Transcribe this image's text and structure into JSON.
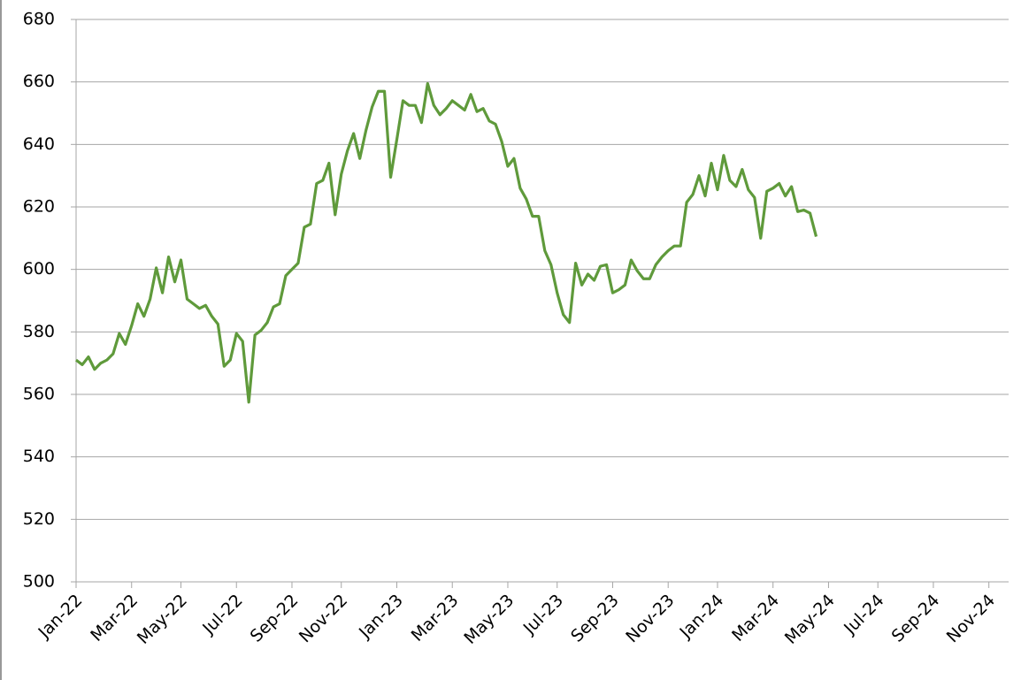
{
  "chart_data": {
    "type": "line",
    "categories": [
      "Jan-22",
      null,
      null,
      null,
      null,
      null,
      null,
      null,
      null,
      "Mar-22",
      null,
      null,
      null,
      null,
      null,
      null,
      null,
      "May-22",
      null,
      null,
      null,
      null,
      null,
      null,
      null,
      null,
      "Jul-22",
      null,
      null,
      null,
      null,
      null,
      null,
      null,
      null,
      "Sep-22",
      null,
      null,
      null,
      null,
      null,
      null,
      null,
      "Nov-22",
      null,
      null,
      null,
      null,
      null,
      null,
      null,
      null,
      "Jan-23",
      null,
      null,
      null,
      null,
      null,
      null,
      null,
      null,
      "Mar-23",
      null,
      null,
      null,
      null,
      null,
      null,
      null,
      null,
      "May-23",
      null,
      null,
      null,
      null,
      null,
      null,
      null,
      "Jul-23",
      null,
      null,
      null,
      null,
      null,
      null,
      null,
      null,
      "Sep-23",
      null,
      null,
      null,
      null,
      null,
      null,
      null,
      null,
      "Nov-23",
      null,
      null,
      null,
      null,
      null,
      null,
      null,
      "Jan-24",
      null,
      null,
      null,
      null,
      null,
      null,
      null,
      null,
      "Mar-24",
      null,
      null,
      null,
      null,
      null,
      null,
      null,
      null,
      "May-24",
      null,
      null,
      null,
      null,
      null,
      null,
      null,
      "Jul-24",
      null,
      null,
      null,
      null,
      null,
      null,
      null,
      null,
      "Sep-24",
      null,
      null,
      null,
      null,
      null,
      null,
      null,
      null,
      "Nov-24",
      null,
      null,
      null
    ],
    "series": [
      {
        "color": "#5f9a3b",
        "values": [
          571,
          569.5,
          572,
          568,
          570,
          571,
          573,
          579.5,
          576,
          582,
          589,
          585,
          590.5,
          600.5,
          592.5,
          604,
          596,
          603,
          590.5,
          589,
          587.5,
          588.5,
          585,
          582.5,
          569,
          571,
          579.5,
          577,
          557.5,
          579,
          580.5,
          583,
          588,
          589,
          598,
          600,
          602,
          613.5,
          614.5,
          627.5,
          628.5,
          634,
          617.5,
          630.5,
          638,
          643.5,
          635.5,
          644.5,
          652,
          657,
          657,
          629.5,
          641.5,
          654,
          652.5,
          652.5,
          647,
          659.5,
          652.5,
          649.5,
          651.5,
          654,
          652.5,
          651,
          656,
          650.5,
          651.5,
          647.5,
          646.5,
          641,
          633,
          635.5,
          626,
          622.5,
          617,
          617,
          606,
          601.5,
          592.5,
          585.5,
          583,
          602,
          595,
          598.5,
          596.5,
          601,
          601.5,
          592.5,
          593.5,
          595,
          603,
          599.5,
          597,
          597,
          601.5,
          604,
          606,
          607.5,
          607.5,
          621.5,
          624,
          630,
          623.5,
          634,
          625.5,
          636.5,
          628.5,
          626.5,
          632,
          625.5,
          623,
          610,
          625,
          626,
          627.5,
          623.5,
          626.5,
          618.5,
          619,
          618,
          610.5,
          null,
          null,
          null,
          null,
          null,
          null,
          null,
          null,
          null,
          null,
          null,
          null,
          null,
          null,
          null,
          null,
          null,
          null,
          null,
          null,
          null,
          null,
          null,
          null,
          null,
          null,
          null,
          null,
          null,
          null,
          null
        ]
      }
    ],
    "ylim": [
      500,
      680
    ],
    "yticks": [
      500,
      520,
      540,
      560,
      580,
      600,
      620,
      640,
      660,
      680
    ],
    "grid": true
  }
}
